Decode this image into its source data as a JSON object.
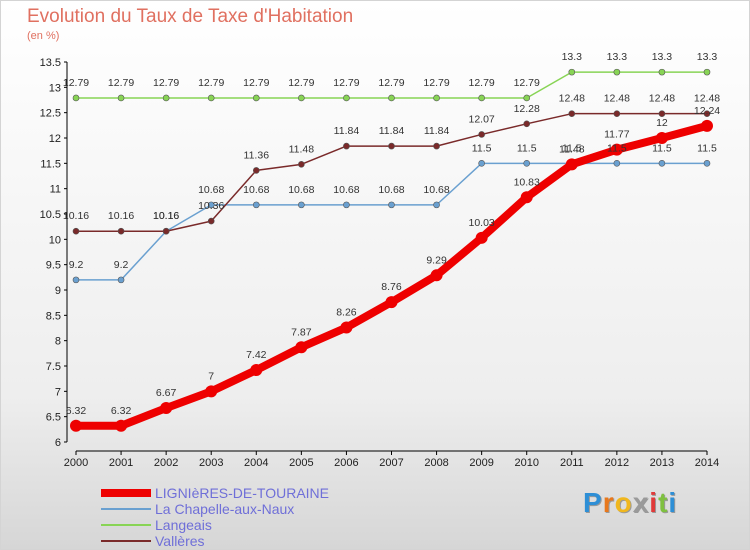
{
  "chart_data": {
    "type": "line",
    "title": "Evolution du Taux de Taxe d'Habitation",
    "subtitle": "(en %)",
    "x": [
      "2000",
      "2001",
      "2002",
      "2003",
      "2004",
      "2005",
      "2006",
      "2007",
      "2008",
      "2009",
      "2010",
      "2011",
      "2012",
      "2013",
      "2014"
    ],
    "ylim": [
      6,
      13.5
    ],
    "yticks": [
      "6",
      "6.5",
      "7",
      "7.5",
      "8",
      "8.5",
      "9",
      "9.5",
      "10",
      "10.5",
      "11",
      "11.5",
      "12",
      "12.5",
      "13",
      "13.5"
    ],
    "grid": false,
    "legend_position": "bottom-left",
    "series": [
      {
        "name": "LIGNIèRES-DE-TOURAINE",
        "color": "#ee0000",
        "values": [
          6.32,
          6.32,
          6.67,
          7,
          7.42,
          7.87,
          8.26,
          8.76,
          9.29,
          10.03,
          10.83,
          11.48,
          11.77,
          12,
          12.24
        ],
        "labels": [
          "6.32",
          "6.32",
          "6.67",
          "7",
          "7.42",
          "7.87",
          "8.26",
          "8.76",
          "9.29",
          "10.03",
          "10.83",
          "11.48",
          "11.77",
          "12",
          "12.24"
        ]
      },
      {
        "name": "La Chapelle-aux-Naux",
        "color": "#6aa0d0",
        "values": [
          9.2,
          9.2,
          10.16,
          10.68,
          10.68,
          10.68,
          10.68,
          10.68,
          10.68,
          11.5,
          11.5,
          11.5,
          11.5,
          11.5,
          11.5
        ],
        "labels": [
          "9.2",
          "9.2",
          "10.16",
          "10.68",
          "10.68",
          "10.68",
          "10.68",
          "10.68",
          "10.68",
          "11.5",
          "11.5",
          "11.5",
          "11.5",
          "11.5",
          "11.5"
        ]
      },
      {
        "name": "Langeais",
        "color": "#88d455",
        "values": [
          12.79,
          12.79,
          12.79,
          12.79,
          12.79,
          12.79,
          12.79,
          12.79,
          12.79,
          12.79,
          12.79,
          13.3,
          13.3,
          13.3,
          13.3
        ],
        "labels": [
          "12.79",
          "12.79",
          "12.79",
          "12.79",
          "12.79",
          "12.79",
          "12.79",
          "12.79",
          "12.79",
          "12.79",
          "12.79",
          "13.3",
          "13.3",
          "13.3",
          "13.3"
        ]
      },
      {
        "name": "Vallères",
        "color": "#7a2a2a",
        "values": [
          10.16,
          10.16,
          10.16,
          10.36,
          11.36,
          11.48,
          11.84,
          11.84,
          11.84,
          12.07,
          12.28,
          12.48,
          12.48,
          12.48,
          12.48
        ],
        "labels": [
          "10.16",
          "10.16",
          "10.16",
          "10.36",
          "11.36",
          "11.48",
          "11.84",
          "11.84",
          "11.84",
          "12.07",
          "12.28",
          "12.48",
          "12.48",
          "12.48",
          "12.48"
        ]
      }
    ]
  },
  "brand": {
    "letters": [
      "P",
      "r",
      "o",
      "x",
      "i",
      "t",
      "i"
    ],
    "colors": [
      "#2e8fd6",
      "#e8781c",
      "#f0b71e",
      "#9a9a9a",
      "#e03a3a",
      "#7fc040",
      "#2e8fd6"
    ]
  }
}
